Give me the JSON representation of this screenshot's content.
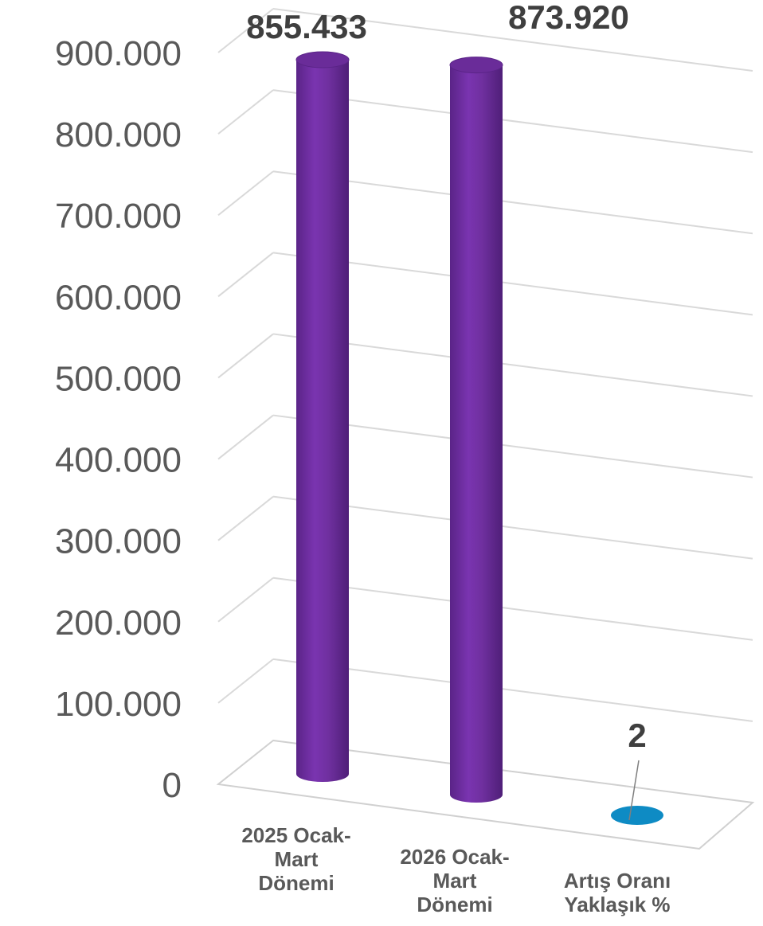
{
  "chart_data": {
    "type": "bar",
    "style": "3d-cylinder",
    "categories": [
      [
        "2025 Ocak-",
        "Mart",
        "Dönemi"
      ],
      [
        "2026 Ocak-",
        "Mart",
        "Dönemi"
      ],
      [
        "Artış Oranı",
        "Yaklaşık %"
      ]
    ],
    "values": [
      855433,
      873920,
      2
    ],
    "data_labels": [
      "855.433",
      "873.920",
      "2"
    ],
    "colors": [
      "#7030a0",
      "#7030a0",
      "#0e8bc4"
    ],
    "title": "",
    "xlabel": "",
    "ylabel": "",
    "ylim": [
      0,
      900000
    ],
    "yticks": [
      0,
      100000,
      200000,
      300000,
      400000,
      500000,
      600000,
      700000,
      800000,
      900000
    ],
    "ytick_labels": [
      "0",
      "100.000",
      "200.000",
      "300.000",
      "400.000",
      "500.000",
      "600.000",
      "700.000",
      "800.000",
      "900.000"
    ],
    "grid": true,
    "legend": "none"
  }
}
